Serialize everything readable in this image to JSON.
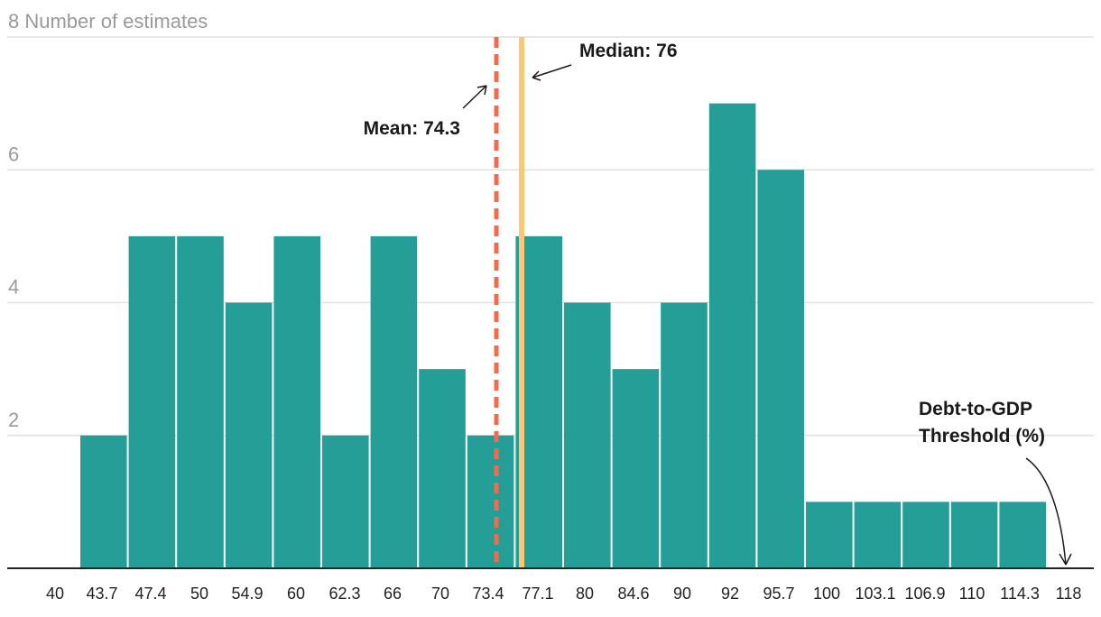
{
  "chart_data": {
    "type": "bar",
    "y_axis_label": "Number of estimates",
    "ylim": [
      0,
      8
    ],
    "y_ticks": [
      2,
      4,
      6,
      8
    ],
    "grid": true,
    "categories": [
      "40",
      "43.7",
      "47.4",
      "50",
      "54.9",
      "60",
      "62.3",
      "66",
      "70",
      "73.4",
      "77.1",
      "80",
      "84.6",
      "90",
      "92",
      "95.7",
      "100",
      "103.1",
      "106.9",
      "110",
      "114.3",
      "118"
    ],
    "bins": [
      {
        "from": 40,
        "to": 43.7,
        "count": 2
      },
      {
        "from": 43.7,
        "to": 47.4,
        "count": 5
      },
      {
        "from": 47.4,
        "to": 50,
        "count": 5
      },
      {
        "from": 50,
        "to": 54.9,
        "count": 4
      },
      {
        "from": 54.9,
        "to": 60,
        "count": 5
      },
      {
        "from": 60,
        "to": 62.3,
        "count": 2
      },
      {
        "from": 62.3,
        "to": 66,
        "count": 5
      },
      {
        "from": 66,
        "to": 70,
        "count": 3
      },
      {
        "from": 70,
        "to": 73.4,
        "count": 2
      },
      {
        "from": 73.4,
        "to": 77.1,
        "count": 5
      },
      {
        "from": 77.1,
        "to": 80,
        "count": 4
      },
      {
        "from": 80,
        "to": 84.6,
        "count": 3
      },
      {
        "from": 84.6,
        "to": 90,
        "count": 4
      },
      {
        "from": 90,
        "to": 92,
        "count": 7
      },
      {
        "from": 92,
        "to": 95.7,
        "count": 6
      },
      {
        "from": 95.7,
        "to": 100,
        "count": 1
      },
      {
        "from": 100,
        "to": 103.1,
        "count": 1
      },
      {
        "from": 103.1,
        "to": 106.9,
        "count": 1
      },
      {
        "from": 106.9,
        "to": 110,
        "count": 1
      },
      {
        "from": 110,
        "to": 114.3,
        "count": 1
      }
    ],
    "mean": {
      "label": "Mean: 74.3",
      "value": 74.3,
      "color": "#f26b4e",
      "style": "dashed"
    },
    "median": {
      "label": "Median: 76",
      "value": 76,
      "color": "#fcc875",
      "style": "solid"
    },
    "x_annotation": {
      "line1": "Debt-to-GDP",
      "line2": "Threshold (%)"
    },
    "colors": {
      "bar": "#259e98",
      "grid": "#e1e1e1",
      "axis": "#222222"
    }
  }
}
